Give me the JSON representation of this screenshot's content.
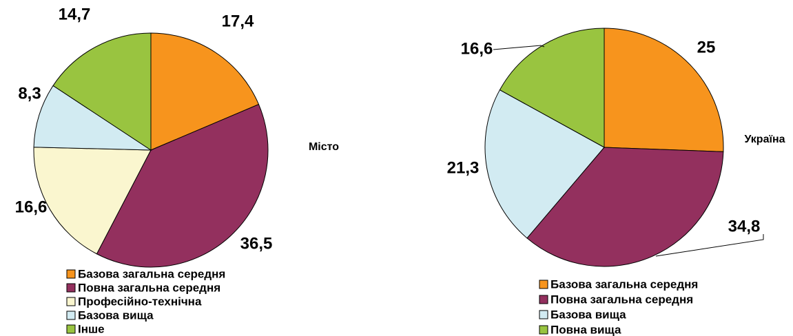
{
  "chart_data": [
    {
      "type": "pie",
      "title": "Місто",
      "categories": [
        "Базова загальна середня",
        "Повна загальна середня",
        "Професійно-технічна",
        "Базова вища",
        "Інше"
      ],
      "values": [
        17.4,
        36.5,
        16.6,
        8.3,
        14.7
      ],
      "value_labels": [
        "17,4",
        "36,5",
        "16,6",
        "8,3",
        "14,7"
      ],
      "colors": [
        "#f7941d",
        "#93305e",
        "#faf6cf",
        "#d2ebf2",
        "#99c440"
      ]
    },
    {
      "type": "pie",
      "title": "Україна",
      "categories": [
        "Базова загальна середня",
        "Повна загальна середня",
        "Базова вища",
        "Повна вища"
      ],
      "values": [
        25,
        34.8,
        21.3,
        16.6
      ],
      "value_labels": [
        "25",
        "34,8",
        "21,3",
        "16,6"
      ],
      "colors": [
        "#f7941d",
        "#93305e",
        "#d2ebf2",
        "#99c440"
      ]
    }
  ]
}
